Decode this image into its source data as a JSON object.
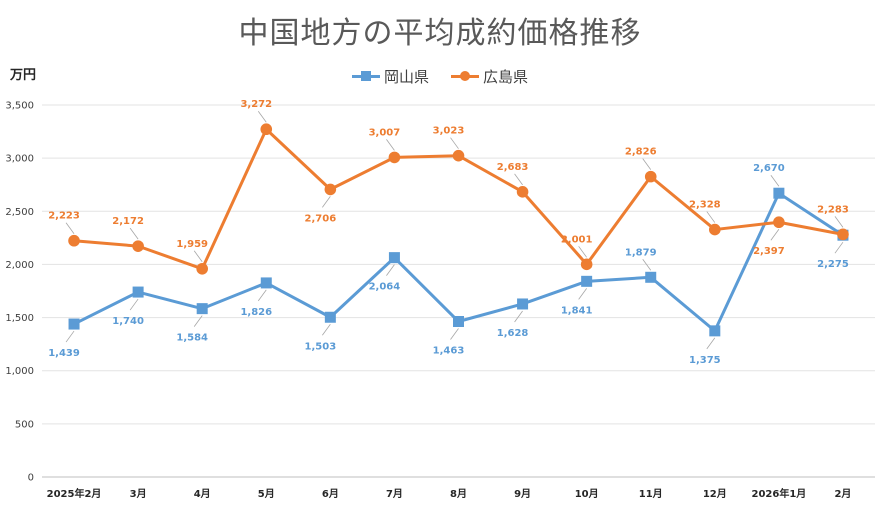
{
  "chart_data": {
    "type": "line",
    "title": "中国地方の平均成約価格推移",
    "ylabel": "万円",
    "xlabel": "",
    "ylim": [
      0,
      3500
    ],
    "yticks": [
      "0",
      "500",
      "1,000",
      "1,500",
      "2,000",
      "2,500",
      "3,000",
      "3,500"
    ],
    "yticks_values": [
      0,
      500,
      1000,
      1500,
      2000,
      2500,
      3000,
      3500
    ],
    "categories": [
      "2025年2月",
      "3月",
      "4月",
      "5月",
      "6月",
      "7月",
      "8月",
      "9月",
      "10月",
      "11月",
      "12月",
      "2026年1月",
      "2月"
    ],
    "grid": true,
    "legend": "top-center",
    "series": [
      {
        "name": "岡山県",
        "color": "#5b9bd5",
        "marker": "square",
        "values": [
          1439,
          1740,
          1584,
          1826,
          1503,
          2064,
          1463,
          1628,
          1841,
          1879,
          1375,
          2670,
          2275
        ],
        "labels": [
          "1,439",
          "1,740",
          "1,584",
          "1,826",
          "1,503",
          "2,064",
          "1,463",
          "1,628",
          "1,841",
          "1,879",
          "1,375",
          "2,670",
          "2,275"
        ]
      },
      {
        "name": "広島県",
        "color": "#ed7d31",
        "marker": "circle",
        "values": [
          2223,
          2172,
          1959,
          3272,
          2706,
          3007,
          3023,
          2683,
          2001,
          2826,
          2328,
          2397,
          2283
        ],
        "labels": [
          "2,223",
          "2,172",
          "1,959",
          "3,272",
          "2,706",
          "3,007",
          "3,023",
          "2,683",
          "2,001",
          "2,826",
          "2,328",
          "2,397",
          "2,283"
        ]
      }
    ]
  }
}
